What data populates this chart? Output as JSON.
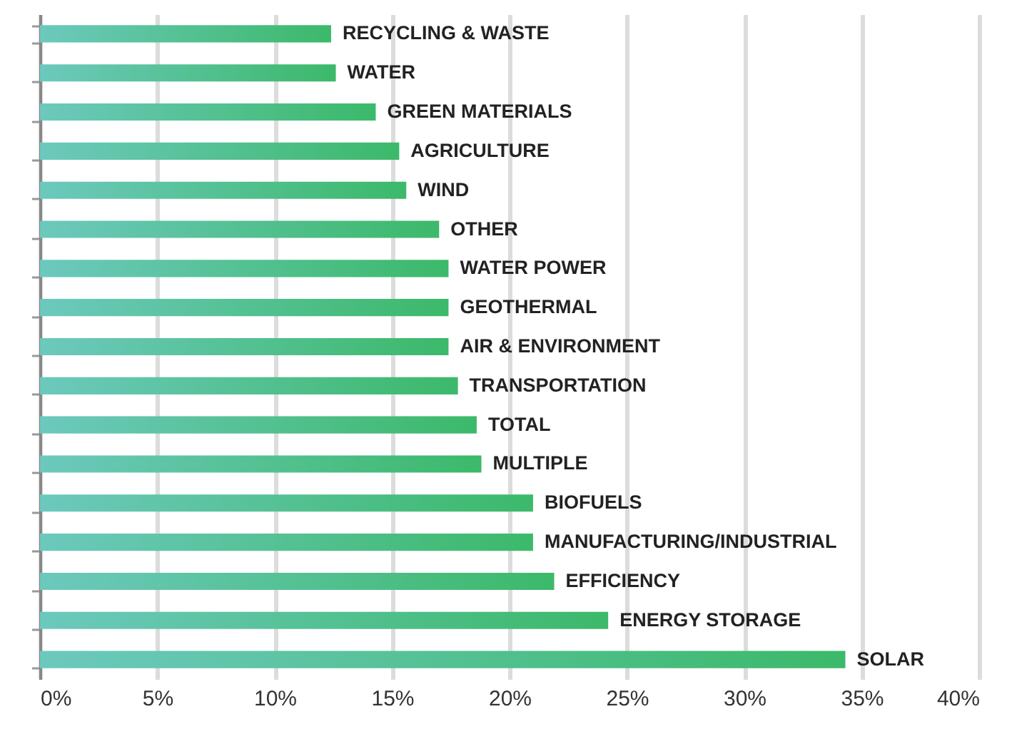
{
  "chart_data": {
    "type": "bar",
    "orientation": "horizontal",
    "categories": [
      "RECYCLING & WASTE",
      "WATER",
      "GREEN MATERIALS",
      "AGRICULTURE",
      "WIND",
      "OTHER",
      "WATER POWER",
      "GEOTHERMAL",
      "AIR & ENVIRONMENT",
      "TRANSPORTATION",
      "TOTAL",
      "MULTIPLE",
      "BIOFUELS",
      "MANUFACTURING/INDUSTRIAL",
      "EFFICIENCY",
      "ENERGY STORAGE",
      "SOLAR"
    ],
    "values": [
      12.4,
      12.6,
      14.3,
      15.3,
      15.6,
      17.0,
      17.4,
      17.4,
      17.4,
      17.8,
      18.6,
      18.8,
      21.0,
      21.0,
      21.9,
      24.2,
      34.3
    ],
    "color": "#3cb96a",
    "xlim": [
      0,
      40
    ],
    "xticks": [
      {
        "value": 0,
        "label": "0%"
      },
      {
        "value": 5,
        "label": "5%"
      },
      {
        "value": 10,
        "label": "10%"
      },
      {
        "value": 15,
        "label": "15%"
      },
      {
        "value": 20,
        "label": "20%"
      },
      {
        "value": 25,
        "label": "25%"
      },
      {
        "value": 30,
        "label": "30%"
      },
      {
        "value": 35,
        "label": "35%"
      },
      {
        "value": 40,
        "label": "40%"
      }
    ],
    "grid": "x",
    "tick_labels": "x"
  }
}
